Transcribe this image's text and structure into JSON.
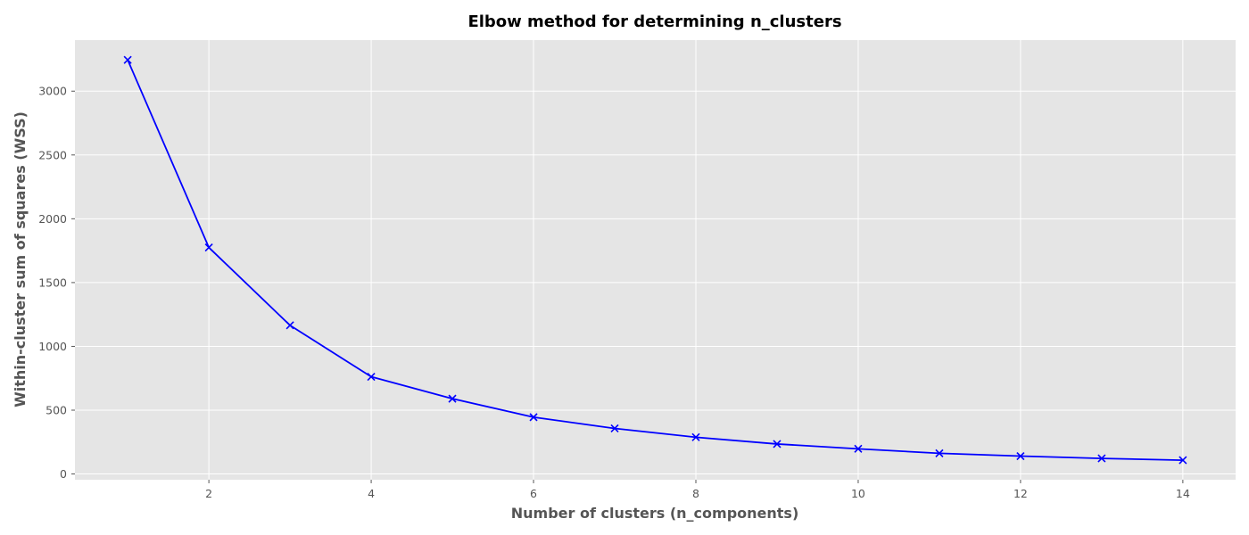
{
  "chart_data": {
    "type": "line",
    "title": "Elbow method for determining n_clusters",
    "xlabel": "Number of clusters (n_components)",
    "ylabel": "Within-cluster sum of squares (WSS)",
    "x": [
      1,
      2,
      3,
      4,
      5,
      6,
      7,
      8,
      9,
      10,
      11,
      12,
      13,
      14
    ],
    "series": [
      {
        "values": [
          3245,
          1775,
          1165,
          762,
          590,
          445,
          357,
          288,
          235,
          197,
          162,
          140,
          122,
          108
        ],
        "color": "#0000ff",
        "marker": "x"
      }
    ],
    "xlim": [
      0.35,
      14.65
    ],
    "ylim": [
      -45,
      3400
    ],
    "xticks": [
      2,
      4,
      6,
      8,
      10,
      12,
      14
    ],
    "yticks": [
      0,
      500,
      1000,
      1500,
      2000,
      2500,
      3000
    ],
    "grid": true,
    "style": {
      "plot_background": "#e5e5e5",
      "grid_color": "#ffffff"
    }
  }
}
